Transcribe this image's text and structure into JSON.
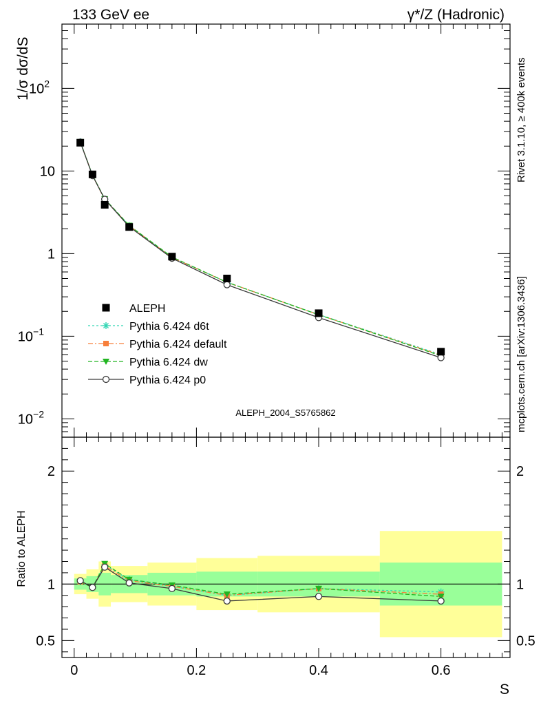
{
  "header": {
    "left": "133 GeV ee",
    "right": "γ*/Z (Hadronic)"
  },
  "side_text": {
    "rivet": "Rivet 3.1.10, ≥ 400k events",
    "mcplots": "mcplots.cern.ch [arXiv:1306.3436]"
  },
  "analysis_id": "ALEPH_2004_S5765862",
  "colors": {
    "aleph": "#000000",
    "d6t": "#33d6b4",
    "default": "#f77f3b",
    "dw": "#22b522",
    "p0": "#3a3a3a",
    "band_outer": "#ffff99",
    "band_inner": "#99ff99"
  },
  "chart_data": [
    {
      "type": "line",
      "ylabel": "1/σ  dσ/dS",
      "yscale": "log",
      "ylim": [
        0.006,
        600
      ],
      "xlim": [
        -0.02,
        0.713
      ],
      "yticks": [
        {
          "value": 0.01,
          "base": "10",
          "exp": "−2"
        },
        {
          "value": 0.1,
          "base": "10",
          "exp": "−1"
        },
        {
          "value": 1,
          "base": "1",
          "exp": ""
        },
        {
          "value": 10,
          "base": "10",
          "exp": ""
        },
        {
          "value": 100,
          "base": "10",
          "exp": "2"
        }
      ],
      "legend_position": "lower-left",
      "data": {
        "name": "ALEPH",
        "x": [
          0.01,
          0.03,
          0.05,
          0.09,
          0.16,
          0.25,
          0.4,
          0.6
        ],
        "y": [
          22.0,
          9.1,
          3.9,
          2.1,
          0.92,
          0.5,
          0.19,
          0.065
        ]
      },
      "series": [
        {
          "name": "Pythia 6.424 d6t",
          "color_key": "d6t",
          "marker": "star",
          "dash": "dotted",
          "x": [
            0.01,
            0.03,
            0.05,
            0.09,
            0.16,
            0.25,
            0.4,
            0.6
          ],
          "y": [
            22.6,
            8.9,
            4.55,
            2.18,
            0.9,
            0.45,
            0.183,
            0.06
          ]
        },
        {
          "name": "Pythia 6.424 default",
          "color_key": "default",
          "marker": "square",
          "dash": "dashdot",
          "x": [
            0.01,
            0.03,
            0.05,
            0.09,
            0.16,
            0.25,
            0.4,
            0.6
          ],
          "y": [
            22.5,
            8.85,
            4.5,
            2.17,
            0.9,
            0.45,
            0.182,
            0.059
          ]
        },
        {
          "name": "Pythia 6.424 dw",
          "color_key": "dw",
          "marker": "triangle-down",
          "dash": "dashed",
          "x": [
            0.01,
            0.03,
            0.05,
            0.09,
            0.16,
            0.25,
            0.4,
            0.6
          ],
          "y": [
            22.6,
            8.9,
            4.6,
            2.19,
            0.91,
            0.45,
            0.182,
            0.058
          ]
        },
        {
          "name": "Pythia 6.424 p0",
          "color_key": "p0",
          "marker": "circle-open",
          "dash": "solid",
          "x": [
            0.01,
            0.03,
            0.05,
            0.09,
            0.16,
            0.25,
            0.4,
            0.6
          ],
          "y": [
            22.4,
            8.8,
            4.55,
            2.12,
            0.88,
            0.42,
            0.168,
            0.055
          ]
        }
      ]
    },
    {
      "type": "line",
      "xlabel": "S",
      "ylabel": "Ratio to ALEPH",
      "ylim": [
        0.35,
        2.3
      ],
      "xlim": [
        -0.02,
        0.713
      ],
      "xticks": [
        0,
        0.2,
        0.4,
        0.6
      ],
      "xtick_labels": [
        "0",
        "0.2",
        "0.4",
        "0.6"
      ],
      "yticks": [
        0.5,
        1,
        2
      ],
      "ytick_labels": [
        "0.5",
        "1",
        "2"
      ],
      "bands": [
        {
          "x0": 0.0,
          "x1": 0.02,
          "stat": [
            0.95,
            1.05
          ],
          "total": [
            0.91,
            1.09
          ]
        },
        {
          "x0": 0.02,
          "x1": 0.04,
          "stat": [
            0.93,
            1.07
          ],
          "total": [
            0.87,
            1.13
          ]
        },
        {
          "x0": 0.04,
          "x1": 0.06,
          "stat": [
            0.9,
            1.1
          ],
          "total": [
            0.8,
            1.2
          ]
        },
        {
          "x0": 0.06,
          "x1": 0.12,
          "stat": [
            0.92,
            1.08
          ],
          "total": [
            0.84,
            1.16
          ]
        },
        {
          "x0": 0.12,
          "x1": 0.2,
          "stat": [
            0.9,
            1.1
          ],
          "total": [
            0.81,
            1.19
          ]
        },
        {
          "x0": 0.2,
          "x1": 0.3,
          "stat": [
            0.89,
            1.11
          ],
          "total": [
            0.77,
            1.23
          ]
        },
        {
          "x0": 0.3,
          "x1": 0.5,
          "stat": [
            0.89,
            1.11
          ],
          "total": [
            0.75,
            1.25
          ]
        },
        {
          "x0": 0.5,
          "x1": 0.7,
          "stat": [
            0.81,
            1.19
          ],
          "total": [
            0.53,
            1.47
          ]
        }
      ],
      "series": [
        {
          "name": "Pythia 6.424 d6t",
          "color_key": "d6t",
          "marker": "star",
          "dash": "dotted",
          "x": [
            0.01,
            0.03,
            0.05,
            0.09,
            0.16,
            0.25,
            0.4,
            0.6
          ],
          "y": [
            1.02,
            0.97,
            1.17,
            1.04,
            0.98,
            0.9,
            0.96,
            0.93
          ]
        },
        {
          "name": "Pythia 6.424 default",
          "color_key": "default",
          "marker": "square",
          "dash": "dashdot",
          "x": [
            0.01,
            0.03,
            0.05,
            0.09,
            0.16,
            0.25,
            0.4,
            0.6
          ],
          "y": [
            1.02,
            0.97,
            1.16,
            1.03,
            0.98,
            0.9,
            0.96,
            0.91
          ]
        },
        {
          "name": "Pythia 6.424 dw",
          "color_key": "dw",
          "marker": "triangle-down",
          "dash": "dashed",
          "x": [
            0.01,
            0.03,
            0.05,
            0.09,
            0.16,
            0.25,
            0.4,
            0.6
          ],
          "y": [
            1.02,
            0.97,
            1.18,
            1.04,
            0.99,
            0.91,
            0.96,
            0.89
          ]
        },
        {
          "name": "Pythia 6.424 p0",
          "color_key": "p0",
          "marker": "circle-open",
          "dash": "solid",
          "x": [
            0.01,
            0.03,
            0.05,
            0.09,
            0.16,
            0.25,
            0.4,
            0.6
          ],
          "y": [
            1.03,
            0.97,
            1.15,
            1.01,
            0.96,
            0.85,
            0.89,
            0.85
          ]
        }
      ]
    }
  ]
}
